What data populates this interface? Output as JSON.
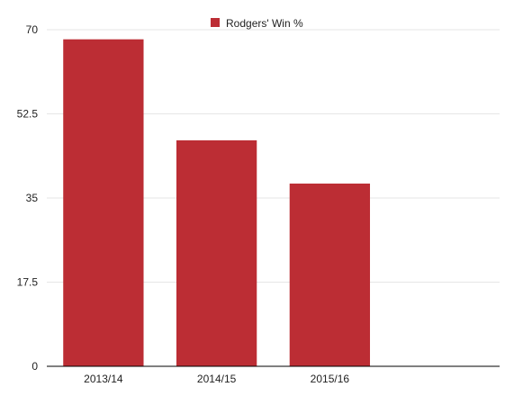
{
  "chart_data": {
    "type": "bar",
    "categories": [
      "2013/14",
      "2014/15",
      "2015/16",
      ""
    ],
    "series": [
      {
        "name": "Rodgers' Win %",
        "values": [
          68,
          47,
          38,
          null
        ],
        "color": "#bc2d34"
      }
    ],
    "yticks": [
      "0",
      "17.5",
      "35",
      "52.5",
      "70"
    ],
    "ylim": [
      0,
      70
    ],
    "grid": true,
    "legend_position": "top-center",
    "axis_color": "#000000",
    "grid_color": "#e6e6e6"
  }
}
